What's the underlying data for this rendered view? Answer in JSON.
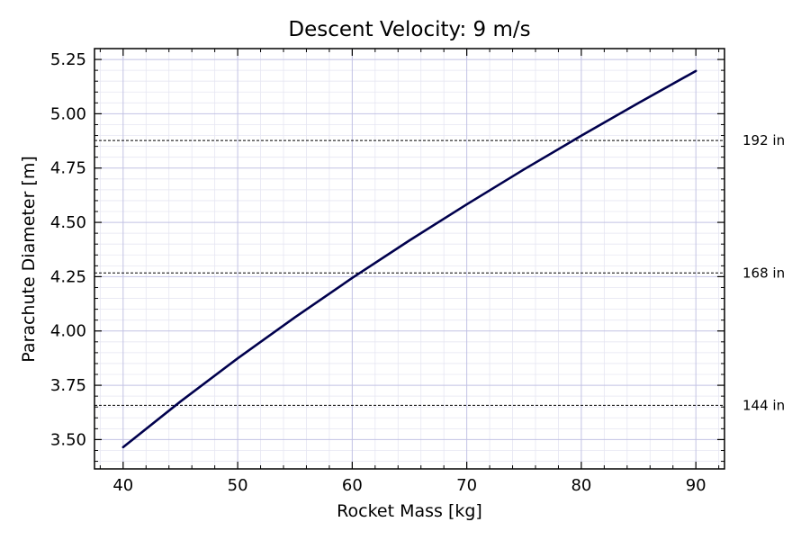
{
  "chart_data": {
    "type": "line",
    "title": "Descent Velocity: 9 m/s",
    "xlabel": "Rocket Mass [kg]",
    "ylabel": "Parachute Diameter [m]",
    "xlim": [
      37.5,
      92.5
    ],
    "ylim": [
      3.365,
      5.3
    ],
    "xticks": [
      40,
      50,
      60,
      70,
      80,
      90
    ],
    "yticks": [
      "3.50",
      "3.75",
      "4.00",
      "4.25",
      "4.50",
      "4.75",
      "5.00",
      "5.25"
    ],
    "grid": true,
    "series": [
      {
        "x": [
          40,
          45,
          50,
          55,
          60,
          65,
          70,
          75,
          80,
          85,
          90
        ],
        "y": [
          3.465,
          3.675,
          3.874,
          4.063,
          4.244,
          4.417,
          4.583,
          4.744,
          4.899,
          5.05,
          5.197
        ],
        "color": "#00004d"
      }
    ],
    "reference_lines": [
      {
        "y": 3.6576,
        "label": "144 in"
      },
      {
        "y": 4.2672,
        "label": "168 in"
      },
      {
        "y": 4.8768,
        "label": "192 in"
      }
    ]
  }
}
